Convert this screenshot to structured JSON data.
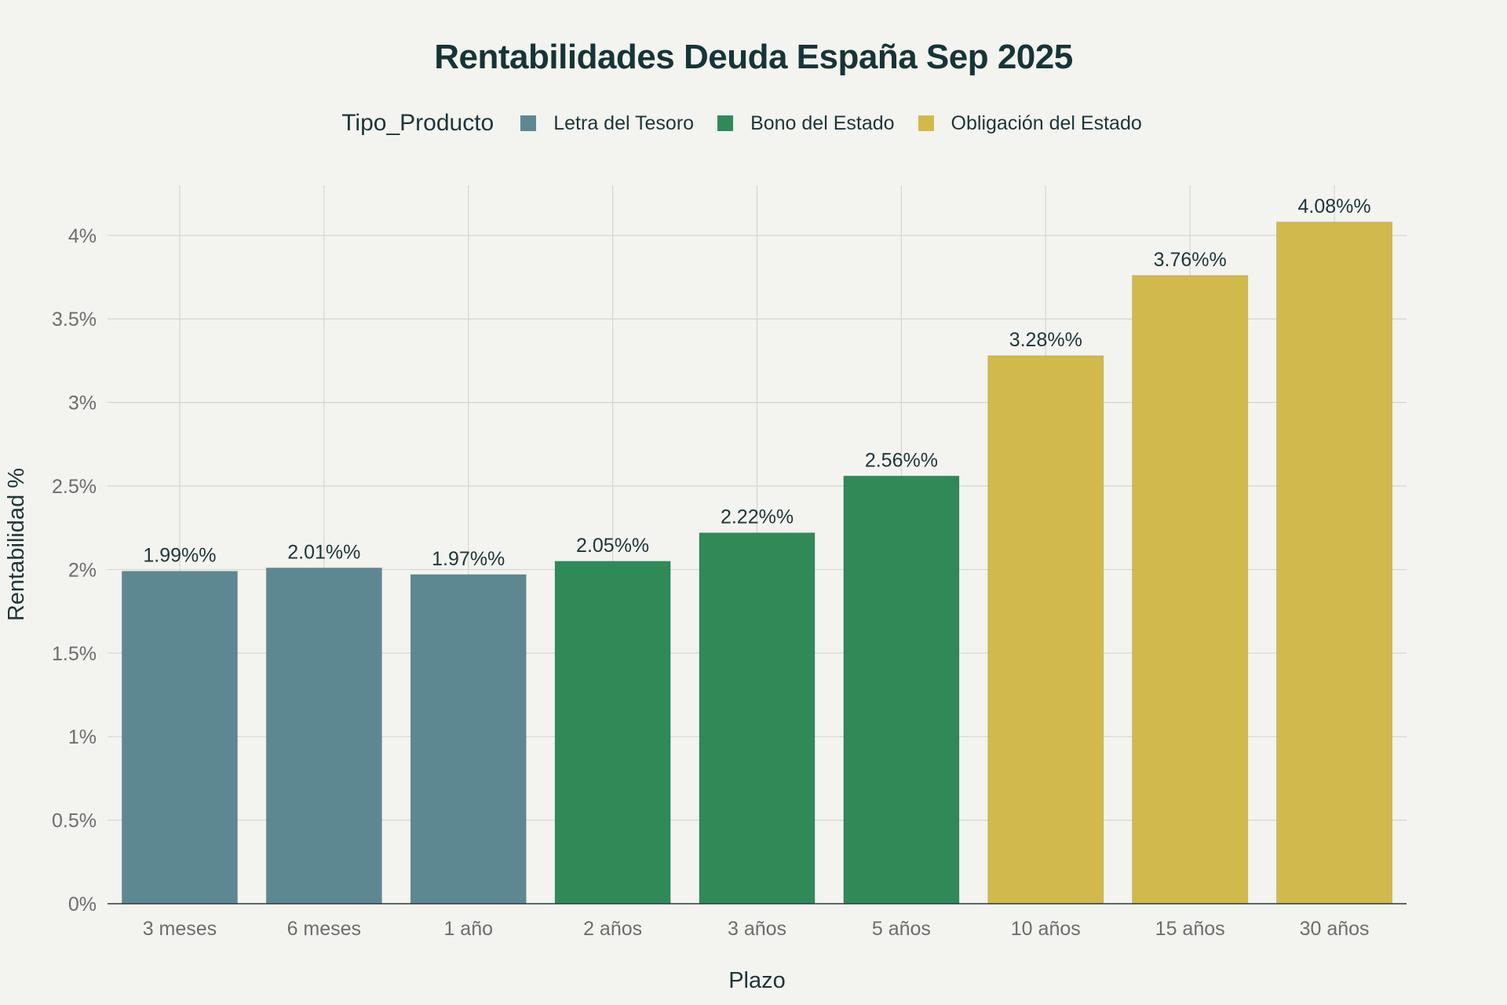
{
  "chart_data": {
    "type": "bar",
    "title": "Rentabilidades Deuda España Sep 2025",
    "legend_title": "Tipo_Producto",
    "xlabel": "Plazo",
    "ylabel": "Rentabilidad %",
    "ylim": [
      0,
      4.3
    ],
    "yticks": [
      0,
      0.5,
      1,
      1.5,
      2,
      2.5,
      3,
      3.5,
      4
    ],
    "ytick_labels": [
      "0%",
      "0.5%",
      "1%",
      "1.5%",
      "2%",
      "2.5%",
      "3%",
      "3.5%",
      "4%"
    ],
    "grid": true,
    "legend_position": "top",
    "categories": [
      "3 meses",
      "6 meses",
      "1 año",
      "2 años",
      "3 años",
      "5 años",
      "10 años",
      "15 años",
      "30 años"
    ],
    "values": [
      1.99,
      2.01,
      1.97,
      2.05,
      2.22,
      2.56,
      3.28,
      3.76,
      4.08
    ],
    "value_labels": [
      "1.99%%",
      "2.01%%",
      "1.97%%",
      "2.05%%",
      "2.22%%",
      "2.56%%",
      "3.28%%",
      "3.76%%",
      "4.08%%"
    ],
    "bar_series": [
      0,
      0,
      0,
      1,
      1,
      1,
      2,
      2,
      2
    ],
    "series": [
      {
        "name": "Letra del Tesoro",
        "color": "#5e8891"
      },
      {
        "name": "Bono del Estado",
        "color": "#2f8a58"
      },
      {
        "name": "Obligación del Estado",
        "color": "#d2b94b"
      }
    ]
  }
}
